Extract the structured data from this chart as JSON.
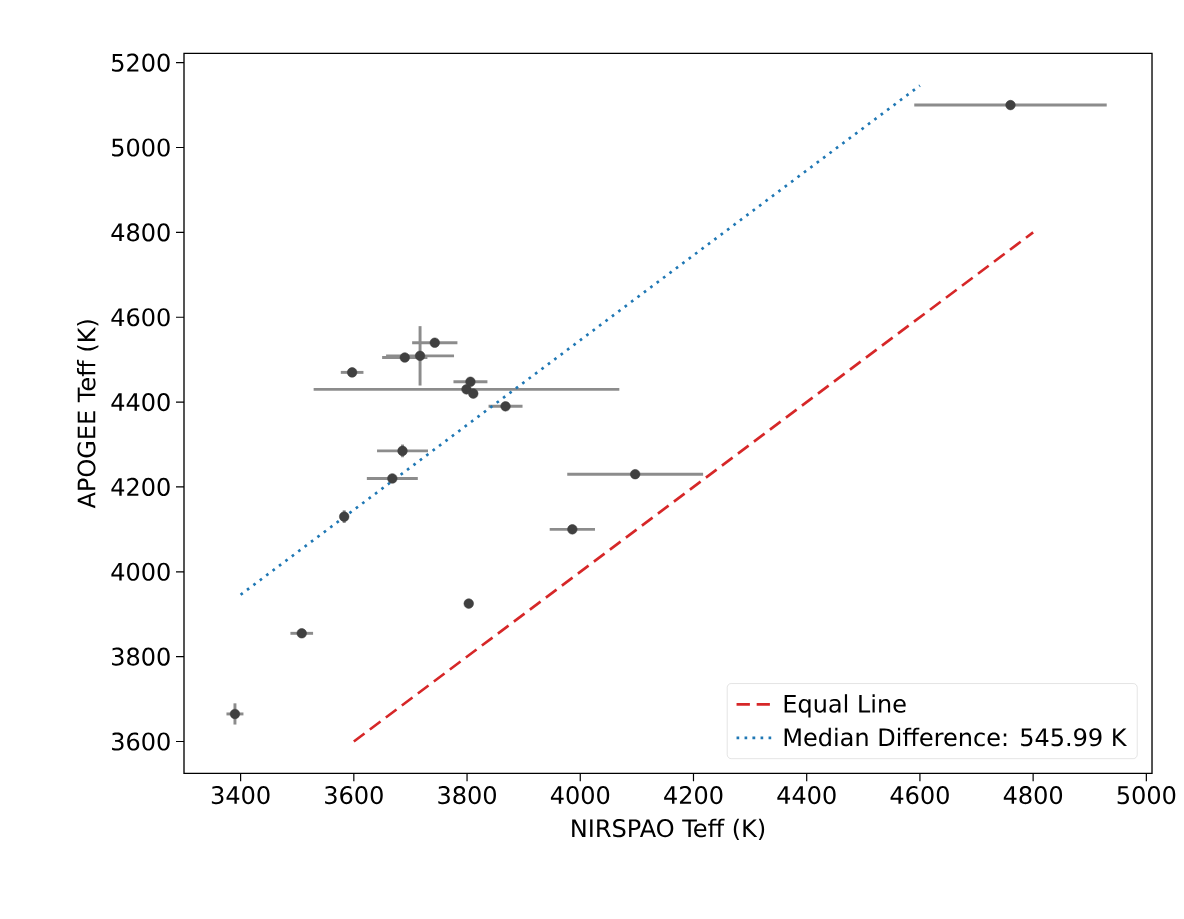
{
  "chart_data": {
    "type": "scatter",
    "xlabel": "NIRSPAO Teff (K)",
    "ylabel": "APOGEE Teff (K)",
    "xlim": [
      3300,
      5010
    ],
    "ylim": [
      3525,
      5222
    ],
    "xticks": [
      3400,
      3600,
      3800,
      4000,
      4200,
      4400,
      4600,
      4800,
      5000
    ],
    "yticks": [
      3600,
      3800,
      4000,
      4200,
      4400,
      4600,
      4800,
      5000,
      5200
    ],
    "grid": false,
    "legend": "bottom right",
    "series": [
      {
        "color": "#404040",
        "marker": "circle",
        "x": [
          4760,
          3743,
          3690,
          3717,
          3597,
          3799,
          3806,
          3811,
          3868,
          3686,
          3668,
          3583,
          4097,
          3986,
          3803,
          3508,
          3390
        ],
        "values": [
          5100,
          4540,
          4505,
          4509,
          4470,
          4430,
          4448,
          4420,
          4390,
          4285,
          4220,
          4130,
          4230,
          4100,
          3925,
          3855,
          3665
        ],
        "errors": [
          null,
          null,
          null,
          70,
          null,
          null,
          null,
          null,
          null,
          15,
          null,
          15,
          null,
          null,
          null,
          null,
          25
        ],
        "xerrors": [
          170,
          40,
          40,
          60,
          20,
          270,
          30,
          null,
          30,
          45,
          45,
          null,
          120,
          40,
          null,
          20,
          15
        ]
      },
      {
        "type": "line",
        "name": "Equal Line",
        "color": "#d62728",
        "line_style": "dashed",
        "x": [
          3600,
          4800
        ],
        "values": [
          3600,
          4800
        ]
      },
      {
        "type": "line",
        "name": "Median Difference: 545.99 K",
        "color": "#1f77b4",
        "line_style": "dotted",
        "x": [
          3400,
          4600
        ],
        "values": [
          3946,
          5146
        ]
      }
    ]
  }
}
